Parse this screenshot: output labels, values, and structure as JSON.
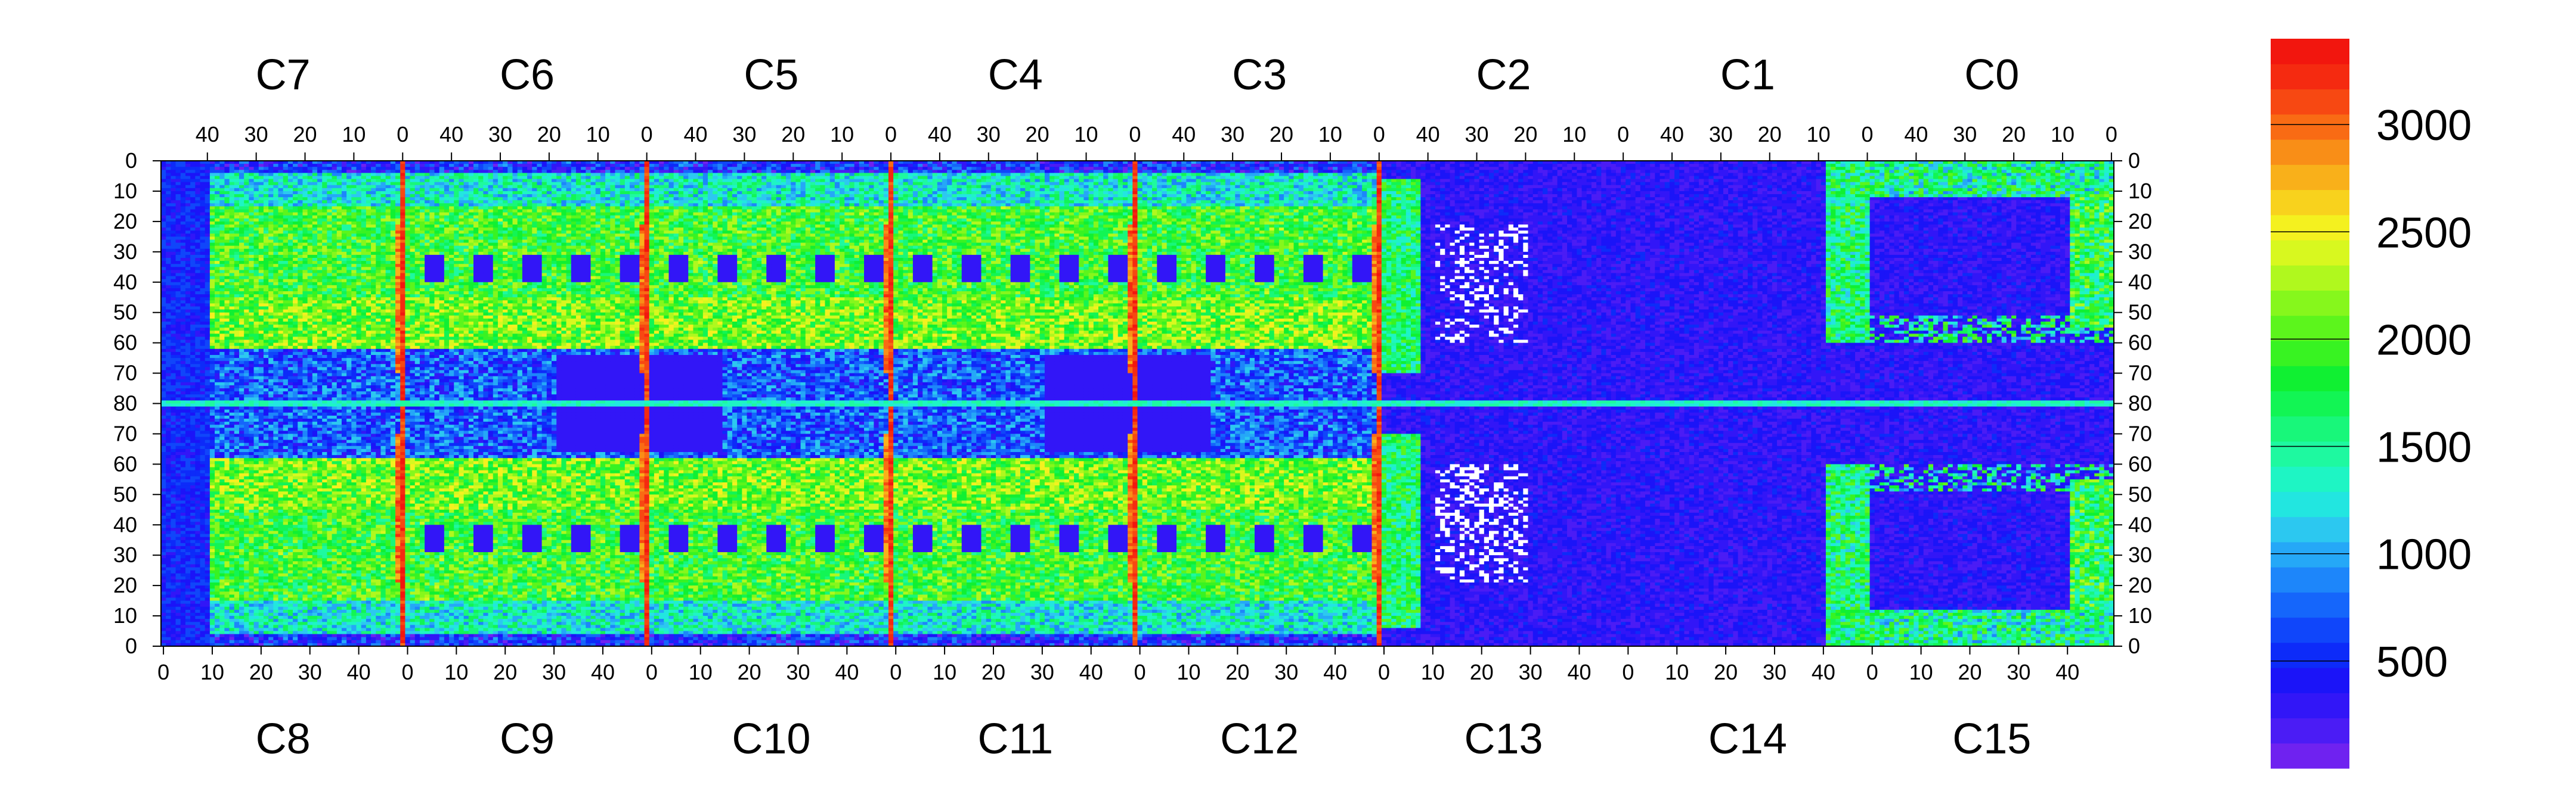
{
  "chart_data": {
    "type": "heatmap",
    "title": "",
    "xlabel": "",
    "ylabel": "",
    "grid": false,
    "top_modules": [
      "C7",
      "C6",
      "C5",
      "C4",
      "C3",
      "C2",
      "C1",
      "C0"
    ],
    "bottom_modules": [
      "C8",
      "C9",
      "C10",
      "C11",
      "C12",
      "C13",
      "C14",
      "C15"
    ],
    "top_tick_labels": [
      "40",
      "30",
      "20",
      "10",
      "0"
    ],
    "bottom_tick_labels": [
      "0",
      "10",
      "20",
      "30",
      "40"
    ],
    "y_tick_labels_top_half": [
      "0",
      "10",
      "20",
      "30",
      "40",
      "50",
      "60",
      "70",
      "80"
    ],
    "y_tick_labels_bottom_half": [
      "70",
      "60",
      "50",
      "40",
      "30",
      "20",
      "10",
      "0"
    ],
    "module_columns": 50,
    "module_half_rows": 80,
    "colorbar": {
      "min": 0,
      "max": 3400,
      "tick_values": [
        500,
        1000,
        1500,
        2000,
        2500,
        3000
      ],
      "tick_labels": [
        "500",
        "1000",
        "1500",
        "2000",
        "2500",
        "3000"
      ],
      "colors": [
        "#6f22f0",
        "#4b1cf5",
        "#3216f7",
        "#1b14f8",
        "#0d2bf9",
        "#1046fa",
        "#1566fb",
        "#1d86fa",
        "#25a8f7",
        "#2cc8f0",
        "#22e6e0",
        "#1ef5c4",
        "#1ef9a0",
        "#18f77a",
        "#12f554",
        "#10f032",
        "#38f322",
        "#5cf51c",
        "#86f71c",
        "#b0f81e",
        "#d8f81f",
        "#f4f11f",
        "#f8d21d",
        "#f9b01a",
        "#f98e17",
        "#f96b14",
        "#f74812",
        "#f52a10",
        "#f2160e"
      ]
    },
    "low_color": "#6a1ff0",
    "high_color": "#f2160e",
    "masked_color": "#ffffff"
  }
}
